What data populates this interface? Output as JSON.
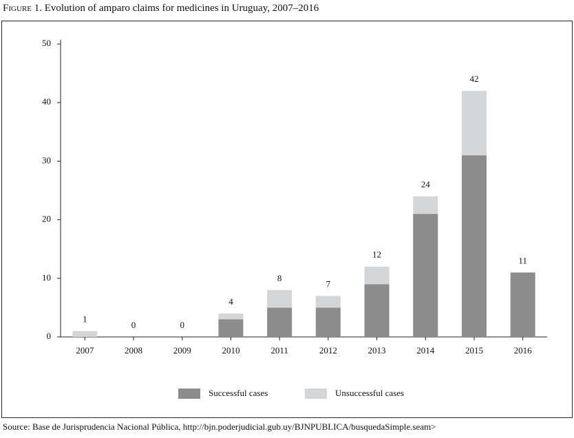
{
  "chart_data": {
    "type": "stacked_bar",
    "figure_label": "Figure 1.",
    "title": "Evolution of amparo claims for medicines in Uruguay, 2007–2016",
    "source": "Source: Base de Jurisprudencia Nacional Pública, http://bjn.poderjudicial.gub.uy/BJNPUBLICA/busquedaSimple.seam>",
    "categories": [
      "2007",
      "2008",
      "2009",
      "2010",
      "2011",
      "2012",
      "2013",
      "2014",
      "2015",
      "2016"
    ],
    "series": [
      {
        "name": "Successful cases",
        "color": "#8c8c8c",
        "values": [
          0,
          0,
          0,
          3,
          5,
          5,
          9,
          21,
          31,
          11
        ]
      },
      {
        "name": "Unsuccessful cases",
        "color": "#d4d5d7",
        "values": [
          1,
          0,
          0,
          1,
          3,
          2,
          3,
          3,
          11,
          0
        ]
      }
    ],
    "totals": [
      1,
      0,
      0,
      4,
      8,
      7,
      12,
      24,
      42,
      11
    ],
    "ylim": [
      0,
      50
    ],
    "yticks": [
      0,
      10,
      20,
      30,
      40,
      50
    ]
  }
}
